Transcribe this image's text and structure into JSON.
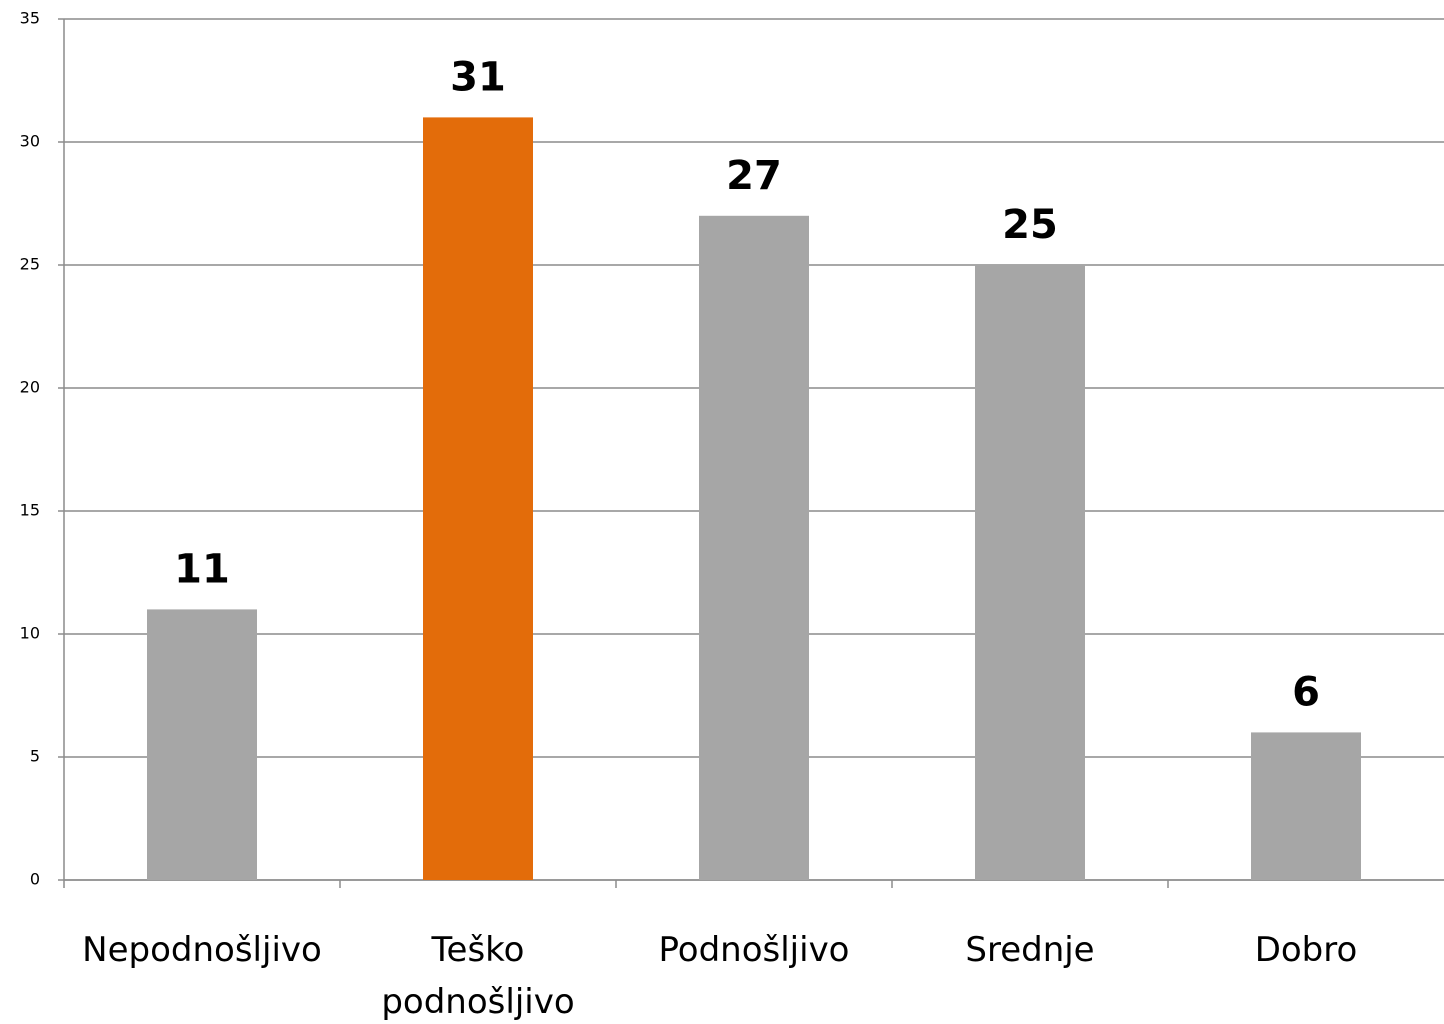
{
  "chart_data": {
    "type": "bar",
    "categories": [
      "Nepodnošljivo",
      "Teško podnošljivo",
      "Podnošljivo",
      "Srednje",
      "Dobro"
    ],
    "values": [
      11,
      31,
      27,
      25,
      6
    ],
    "colors": [
      "#a6a6a6",
      "#e36c0a",
      "#a6a6a6",
      "#a6a6a6",
      "#a6a6a6"
    ],
    "ylim": [
      0,
      35
    ],
    "yticks": [
      0,
      5,
      10,
      15,
      20,
      25,
      30,
      35
    ],
    "grid": true
  }
}
